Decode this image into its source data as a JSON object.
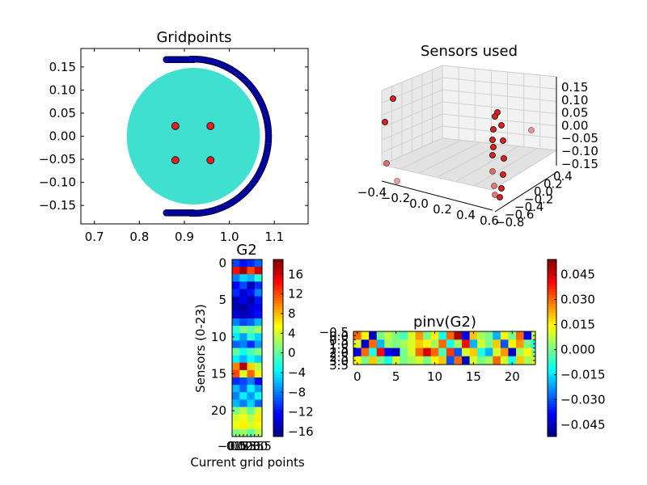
{
  "chart_data": [
    {
      "id": "gridpoints",
      "type": "scatter",
      "title": "Gridpoints",
      "xlim": [
        0.67,
        1.175
      ],
      "ylim": [
        -0.19,
        0.19
      ],
      "xticks": [
        0.7,
        0.8,
        0.9,
        1.0,
        1.1
      ],
      "xtick_labels": [
        "0.7",
        "0.8",
        "0.9",
        "1.0",
        "1.1"
      ],
      "yticks": [
        0.15,
        0.1,
        0.05,
        0.0,
        -0.05,
        -0.1,
        -0.15
      ],
      "ytick_labels": [
        "0.15",
        "0.10",
        "0.05",
        "0.00",
        "−0.05",
        "−0.10",
        "−0.15"
      ],
      "vessel": {
        "center": [
          0.92,
          0.0
        ],
        "radius": 0.148,
        "color": "#40e0d0"
      },
      "ring": {
        "center": [
          0.92,
          0.0
        ],
        "radius": 0.167,
        "angle_start_deg": -92,
        "angle_end_deg": 92,
        "count": 110,
        "color": "#0000cc",
        "top_end": {
          "x_from": 0.86,
          "x_to": 0.92,
          "y": 0.166,
          "count": 14
        },
        "bottom_end": {
          "x_from": 0.86,
          "x_to": 0.92,
          "y": -0.166,
          "count": 14
        }
      },
      "current_points": {
        "color": "#e02020",
        "x": [
          0.88,
          0.958,
          0.88,
          0.958
        ],
        "y": [
          0.022,
          0.022,
          -0.052,
          -0.052
        ]
      }
    },
    {
      "id": "sensors",
      "type": "scatter3d",
      "title": "Sensors used",
      "x_ticks": [
        "−0.4",
        "−0.2",
        "0.0",
        "0.2",
        "0.4",
        "0.6"
      ],
      "y_ticks": [
        "−0.8",
        "−0.6",
        "−0.4",
        "−0.2",
        "0.0",
        "0.2",
        "0.4"
      ],
      "z_ticks": [
        "0.15",
        "0.10",
        "0.05",
        "0.00",
        "−0.05",
        "−0.10",
        "−0.15"
      ],
      "point_color": "#e02020"
    },
    {
      "id": "g2",
      "type": "heatmap",
      "title": "G2",
      "ylabel": "Sensors (0-23)",
      "xlabel": "Current grid points",
      "rows": 24,
      "cols": 4,
      "yticks": [
        0,
        5,
        10,
        15,
        20
      ],
      "ytick_labels": [
        "0",
        "5",
        "10",
        "15",
        "20"
      ],
      "xtick_labels": [
        "−0.5",
        "0.0",
        "0.5",
        "1.0",
        "1.5",
        "2.0",
        "2.5",
        "3.0",
        "3.5"
      ],
      "colorbar": {
        "range": [
          -17,
          19
        ],
        "ticks": [
          16,
          12,
          8,
          4,
          0,
          -4,
          -8,
          -12,
          -16
        ],
        "tick_labels": [
          "16",
          "12",
          "8",
          "4",
          "0",
          "−4",
          "−8",
          "−12",
          "−16"
        ]
      },
      "values": [
        [
          -10,
          -12,
          -11,
          -9
        ],
        [
          14,
          18,
          12,
          16
        ],
        [
          -8,
          -5,
          -6,
          -2
        ],
        [
          -13,
          -10,
          -15,
          -11
        ],
        [
          -11,
          -14,
          -12,
          -8
        ],
        [
          -15,
          -13,
          -16,
          -12
        ],
        [
          -15,
          -16,
          -14,
          -13
        ],
        [
          -14,
          -15,
          -14,
          -12
        ],
        [
          -8,
          -10,
          -9,
          -6
        ],
        [
          -2,
          1,
          0,
          2
        ],
        [
          -4,
          -7,
          -2,
          -5
        ],
        [
          -9,
          -8,
          -11,
          -7
        ],
        [
          0,
          -3,
          -1,
          1
        ],
        [
          -4,
          -6,
          -3,
          -5
        ],
        [
          10,
          17,
          7,
          3
        ],
        [
          12,
          4,
          11,
          5
        ],
        [
          -11,
          -10,
          -8,
          -13
        ],
        [
          -6,
          -9,
          -4,
          -7
        ],
        [
          -8,
          -4,
          -7,
          -3
        ],
        [
          -6,
          -8,
          -5,
          -9
        ],
        [
          1,
          3,
          0,
          4
        ],
        [
          4,
          5,
          3,
          6
        ],
        [
          5,
          6,
          4,
          5
        ],
        [
          1,
          2,
          0,
          3
        ]
      ]
    },
    {
      "id": "pinv",
      "type": "heatmap",
      "title": "pinv(G2)",
      "rows": 4,
      "cols": 24,
      "xticks": [
        0,
        5,
        10,
        15,
        20
      ],
      "xtick_labels": [
        "0",
        "5",
        "10",
        "15",
        "20"
      ],
      "ytick_labels": [
        "−0.5",
        "0.0",
        "0.5",
        "1.0",
        "1.5",
        "2.0",
        "2.5",
        "3.0",
        "3.5"
      ],
      "colorbar": {
        "range": [
          -0.052,
          0.054
        ],
        "ticks": [
          0.045,
          0.03,
          0.015,
          0.0,
          -0.015,
          -0.03,
          -0.045
        ],
        "tick_labels": [
          "0.045",
          "0.030",
          "0.015",
          "0.000",
          "−0.015",
          "−0.030",
          "−0.045"
        ]
      },
      "values": [
        [
          0.03,
          0.015,
          -0.045,
          0.0,
          0.008,
          0.0,
          -0.005,
          0.01,
          0.025,
          0.0,
          0.015,
          -0.01,
          0.03,
          0.05,
          -0.04,
          0.02,
          0.005,
          0.0,
          -0.02,
          0.015,
          0.0,
          0.03,
          -0.04,
          0.01
        ],
        [
          0.01,
          -0.045,
          0.03,
          -0.02,
          0.005,
          0.0,
          0.005,
          0.01,
          0.02,
          0.015,
          0.005,
          0.03,
          -0.01,
          0.005,
          0.04,
          -0.02,
          0.01,
          0.0,
          0.02,
          -0.03,
          0.015,
          0.025,
          0.0,
          -0.01
        ],
        [
          -0.04,
          0.03,
          -0.01,
          0.04,
          -0.04,
          -0.045,
          0.0,
          0.01,
          0.03,
          0.045,
          0.03,
          -0.005,
          0.035,
          -0.03,
          0.01,
          0.02,
          -0.01,
          -0.02,
          0.01,
          0.025,
          -0.045,
          0.005,
          0.015,
          0.0
        ],
        [
          0.015,
          0.0,
          0.02,
          0.0,
          -0.01,
          0.01,
          0.0,
          0.005,
          0.01,
          0.0,
          0.015,
          0.02,
          -0.03,
          0.03,
          -0.045,
          0.01,
          0.0,
          0.005,
          0.03,
          0.01,
          -0.01,
          0.02,
          0.005,
          0.01
        ]
      ]
    }
  ]
}
